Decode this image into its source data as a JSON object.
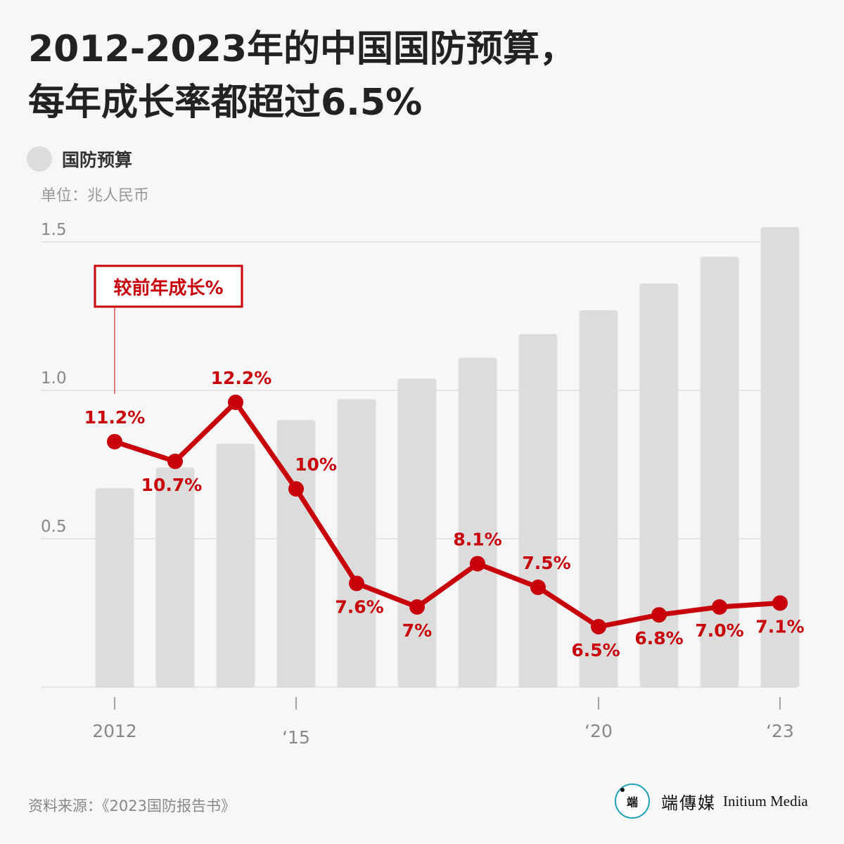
{
  "title_line1": "2012-2023年的中国国防预算，",
  "title_line2": "每年成长率都超过6.5%",
  "legend_label": "国防预算",
  "unit": "单位：兆人民币",
  "growth_label": "较前年成长%",
  "source": "资料来源：《2023国防报告书》",
  "brand_cn": "端傳媒",
  "brand_en": "Initium Media",
  "colors": {
    "bar": "#dcdcdc",
    "line": "#c8000a",
    "grid": "#d0d0d0",
    "axis_text": "#888888"
  },
  "chart_data": {
    "type": "bar",
    "title": "2012-2023年的中国国防预算，每年成长率都超过6.5%",
    "ylabel": "单位：兆人民币",
    "ylim": [
      0,
      1.5
    ],
    "yticks": [
      0.5,
      1.0,
      1.5
    ],
    "ytick_labels": [
      "0.5",
      "1.0",
      "1.5"
    ],
    "categories": [
      "2012",
      "2013",
      "2014",
      "2015",
      "2016",
      "2017",
      "2018",
      "2019",
      "2020",
      "2021",
      "2022",
      "2023"
    ],
    "xtick_labels": [
      {
        "index": 0,
        "label": "2012"
      },
      {
        "index": 3,
        "label": "‘15"
      },
      {
        "index": 8,
        "label": "‘20"
      },
      {
        "index": 11,
        "label": "‘23"
      }
    ],
    "series": [
      {
        "name": "国防预算",
        "type": "bar",
        "values": [
          0.67,
          0.74,
          0.82,
          0.9,
          0.97,
          1.04,
          1.11,
          1.19,
          1.27,
          1.36,
          1.45,
          1.55
        ]
      },
      {
        "name": "较前年成长%",
        "type": "line",
        "values": [
          11.2,
          10.7,
          12.2,
          10.0,
          7.6,
          7.0,
          8.1,
          7.5,
          6.5,
          6.8,
          7.0,
          7.1
        ],
        "labels": [
          "11.2%",
          "10.7%",
          "12.2%",
          "10%",
          "7.6%",
          "7%",
          "8.1%",
          "7.5%",
          "6.5%",
          "6.8%",
          "7.0%",
          "7.1%"
        ],
        "label_side": [
          "above",
          "below",
          "above",
          "above",
          "below",
          "below",
          "above",
          "above",
          "below",
          "below",
          "below",
          "below"
        ]
      }
    ]
  }
}
